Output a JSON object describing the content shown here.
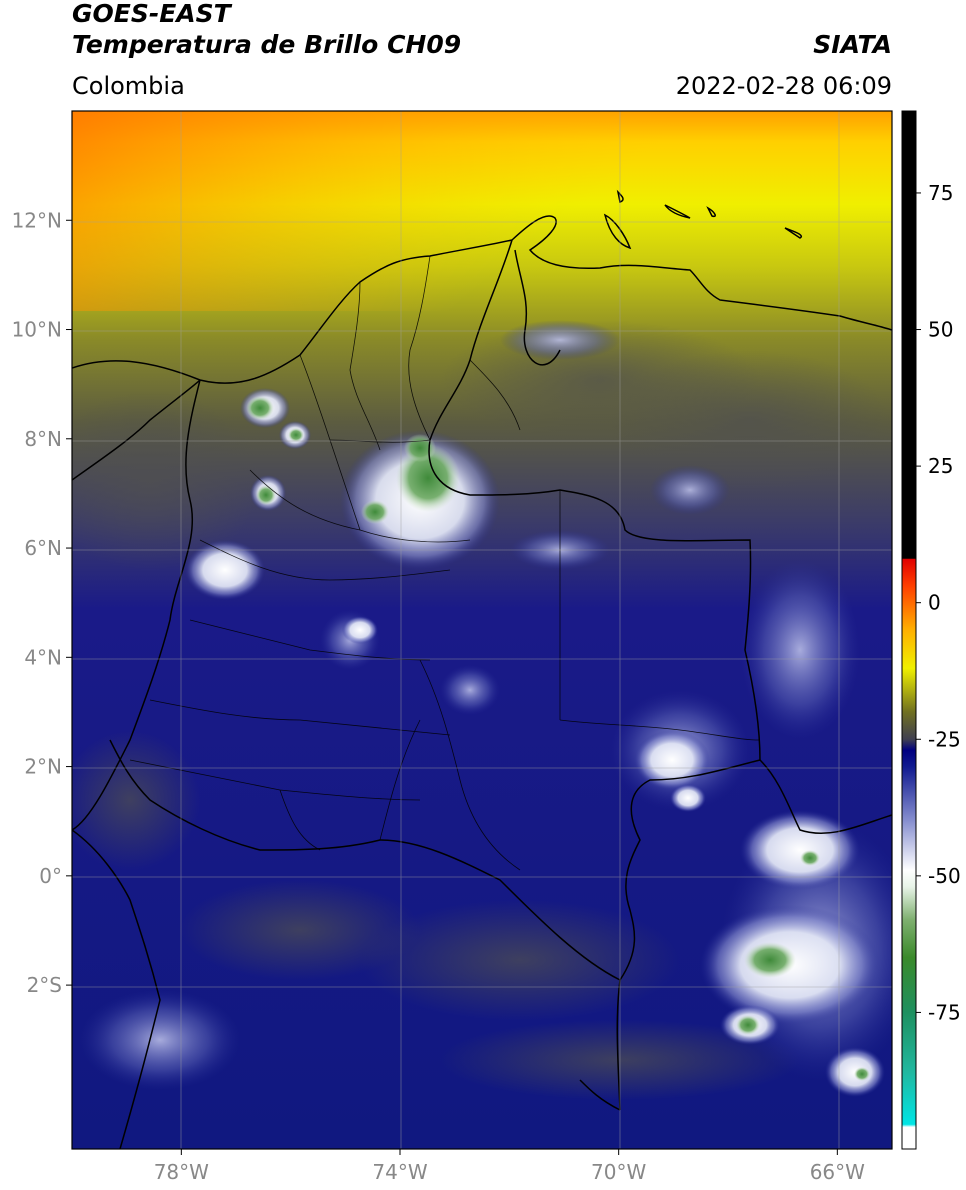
{
  "header": {
    "satellite": "GOES-EAST",
    "product": "Temperatura de Brillo CH09",
    "agency": "SIATA",
    "region": "Colombia",
    "timestamp": "2022-02-28 06:09"
  },
  "map": {
    "lon_range": [
      -80,
      -65
    ],
    "lat_range": [
      -5,
      14
    ],
    "lon_ticks": [
      {
        "value": -78,
        "label": "78°W"
      },
      {
        "value": -74,
        "label": "74°W"
      },
      {
        "value": -70,
        "label": "70°W"
      },
      {
        "value": -66,
        "label": "66°W"
      }
    ],
    "lat_ticks": [
      {
        "value": 12,
        "label": "12°N"
      },
      {
        "value": 10,
        "label": "10°N"
      },
      {
        "value": 8,
        "label": "8°N"
      },
      {
        "value": 6,
        "label": "6°N"
      },
      {
        "value": 4,
        "label": "4°N"
      },
      {
        "value": 2,
        "label": "2°N"
      },
      {
        "value": 0,
        "label": "0°"
      },
      {
        "value": -2,
        "label": "2°S"
      }
    ],
    "grid": true
  },
  "colorbar": {
    "range": [
      -100,
      90
    ],
    "ticks": [
      {
        "value": 75,
        "label": "75"
      },
      {
        "value": 50,
        "label": "50"
      },
      {
        "value": 25,
        "label": "25"
      },
      {
        "value": 0,
        "label": "0"
      },
      {
        "value": -25,
        "label": "-25"
      },
      {
        "value": -50,
        "label": "-50"
      },
      {
        "value": -75,
        "label": "-75"
      }
    ],
    "stops": [
      {
        "value": -100,
        "color": "#ffffff"
      },
      {
        "value": -96,
        "color": "#ffffff"
      },
      {
        "value": -95.5,
        "color": "#00e5e5"
      },
      {
        "value": -86,
        "color": "#20b8a0"
      },
      {
        "value": -75,
        "color": "#1e9060"
      },
      {
        "value": -65,
        "color": "#3a8a2a"
      },
      {
        "value": -58,
        "color": "#7fb070"
      },
      {
        "value": -52,
        "color": "#e8f4e8"
      },
      {
        "value": -49,
        "color": "#ffffff"
      },
      {
        "value": -40,
        "color": "#8890d0"
      },
      {
        "value": -30,
        "color": "#101a90"
      },
      {
        "value": -27,
        "color": "#000080"
      },
      {
        "value": -25,
        "color": "#404050"
      },
      {
        "value": -20,
        "color": "#707020"
      },
      {
        "value": -12,
        "color": "#f0f000"
      },
      {
        "value": -5,
        "color": "#ffb000"
      },
      {
        "value": 3,
        "color": "#ff4000"
      },
      {
        "value": 8,
        "color": "#e00000"
      },
      {
        "value": 8.1,
        "color": "#000000"
      },
      {
        "value": 90,
        "color": "#000000"
      }
    ]
  }
}
